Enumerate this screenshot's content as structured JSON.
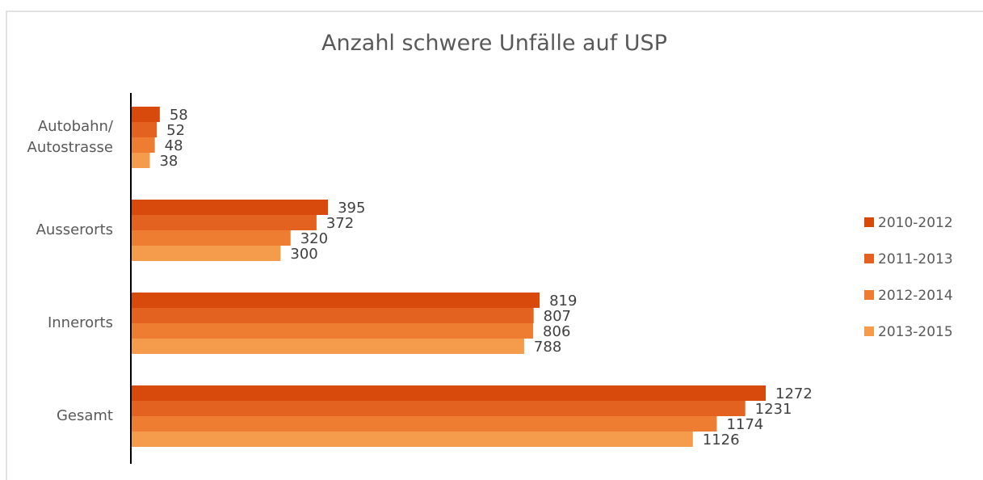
{
  "chart_data": {
    "type": "bar",
    "orientation": "horizontal",
    "title": "Anzahl schwere Unfälle auf USP",
    "categories": [
      "Autobahn/\nAutostrasse",
      "Ausserorts",
      "Innerorts",
      "Gesamt"
    ],
    "series": [
      {
        "name": "2010-2012",
        "color": "#d84a0b",
        "values": [
          58,
          395,
          819,
          1272
        ]
      },
      {
        "name": "2011-2013",
        "color": "#e4621f",
        "values": [
          52,
          372,
          807,
          1231
        ]
      },
      {
        "name": "2012-2014",
        "color": "#ee7c31",
        "values": [
          48,
          320,
          806,
          1174
        ]
      },
      {
        "name": "2013-2015",
        "color": "#f59b4c",
        "values": [
          38,
          300,
          788,
          1126
        ]
      }
    ],
    "legend": "right"
  }
}
